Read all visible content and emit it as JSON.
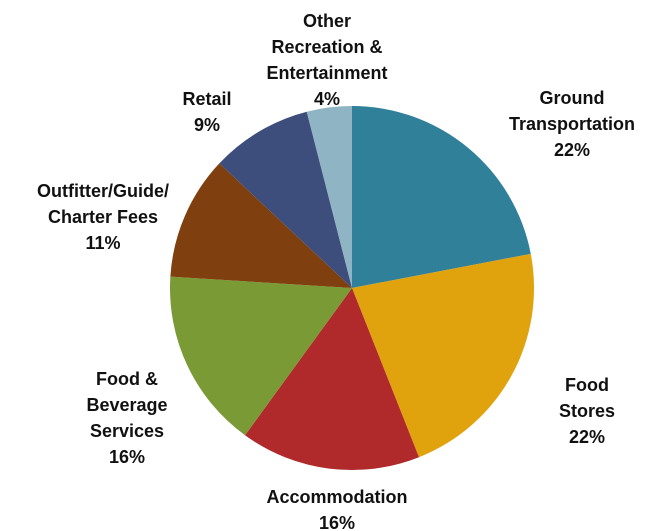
{
  "chart_data": {
    "type": "pie",
    "categories": [
      "Ground\nTransportation",
      "Food Stores",
      "Accommodation",
      "Food &\nBeverage\nServices",
      "Outfitter/Guide/\nCharter Fees",
      "Retail",
      "Other\nRecreation &\nEntertainment"
    ],
    "values": [
      22,
      22,
      16,
      16,
      11,
      9,
      4
    ],
    "value_labels": [
      "22%",
      "22%",
      "16%",
      "16%",
      "11%",
      "9%",
      "4%"
    ],
    "colors": [
      "#31809a",
      "#e0a30e",
      "#b0292b",
      "#7a9a35",
      "#7f3f0f",
      "#3e4e7c",
      "#8fb4c4"
    ]
  }
}
